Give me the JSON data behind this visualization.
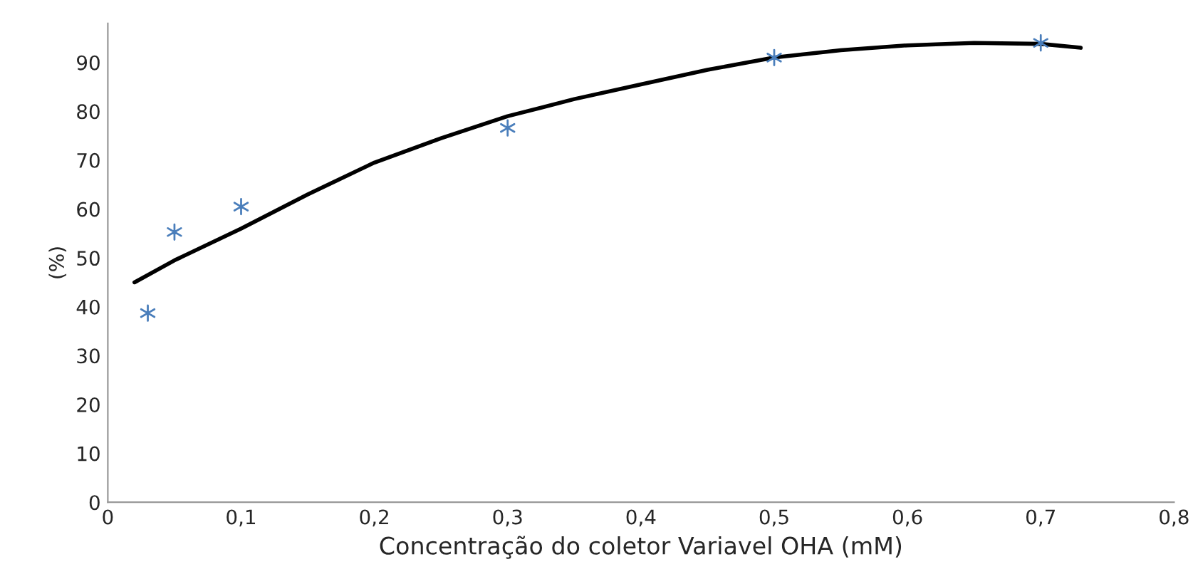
{
  "chart_data": {
    "type": "scatter",
    "xlabel": "Concentração do coletor Variavel OHA (mM)",
    "ylabel": "(%)",
    "xlim": [
      0,
      0.8
    ],
    "ylim": [
      0,
      98
    ],
    "xticks": [
      0,
      {
        "value": 0.1,
        "label": "0,1"
      },
      {
        "value": 0.2,
        "label": "0,2"
      },
      {
        "value": 0.3,
        "label": "0,3"
      },
      {
        "value": 0.4,
        "label": "0,4"
      },
      {
        "value": 0.5,
        "label": "0,5"
      },
      {
        "value": 0.6,
        "label": "0,6"
      },
      {
        "value": 0.7,
        "label": "0,7"
      },
      {
        "value": 0.8,
        "label": "0,8"
      }
    ],
    "yticks": [
      0,
      10,
      20,
      30,
      40,
      50,
      60,
      70,
      80,
      90
    ],
    "grid": false,
    "legend": false,
    "series": [
      {
        "color": "#4a7ebb",
        "marker": "cross",
        "x": [
          0.03,
          0.05,
          0.1,
          0.3,
          0.5,
          0.7
        ],
        "values": [
          38.7,
          55.3,
          60.5,
          76.6,
          91,
          94
        ]
      },
      {
        "type": "line",
        "color": "#000000",
        "marker": "none",
        "line_style": "solid",
        "x": [
          0.02,
          0.05,
          0.1,
          0.15,
          0.2,
          0.25,
          0.3,
          0.35,
          0.4,
          0.45,
          0.5,
          0.55,
          0.6,
          0.65,
          0.7,
          0.73
        ],
        "values": [
          45,
          49.5,
          56,
          63,
          69.5,
          74.5,
          79,
          82.5,
          85.5,
          88.5,
          91,
          92.5,
          93.5,
          94,
          93.8,
          93
        ]
      }
    ]
  }
}
